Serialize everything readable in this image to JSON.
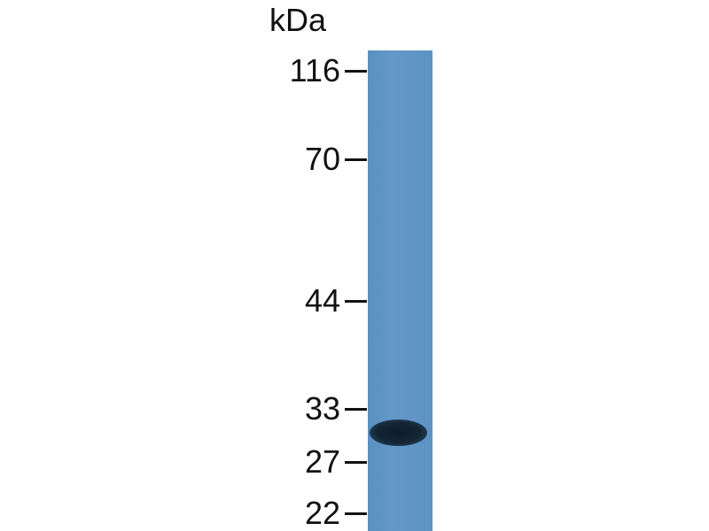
{
  "unit_label": "kDa",
  "markers": [
    {
      "label": "116",
      "kda": 116
    },
    {
      "label": "70",
      "kda": 70
    },
    {
      "label": "44",
      "kda": 44
    },
    {
      "label": "33",
      "kda": 33
    },
    {
      "label": "27",
      "kda": 27
    },
    {
      "label": "22",
      "kda": 22
    }
  ],
  "colors": {
    "membrane": "#6097c6",
    "band": "#152636"
  }
}
